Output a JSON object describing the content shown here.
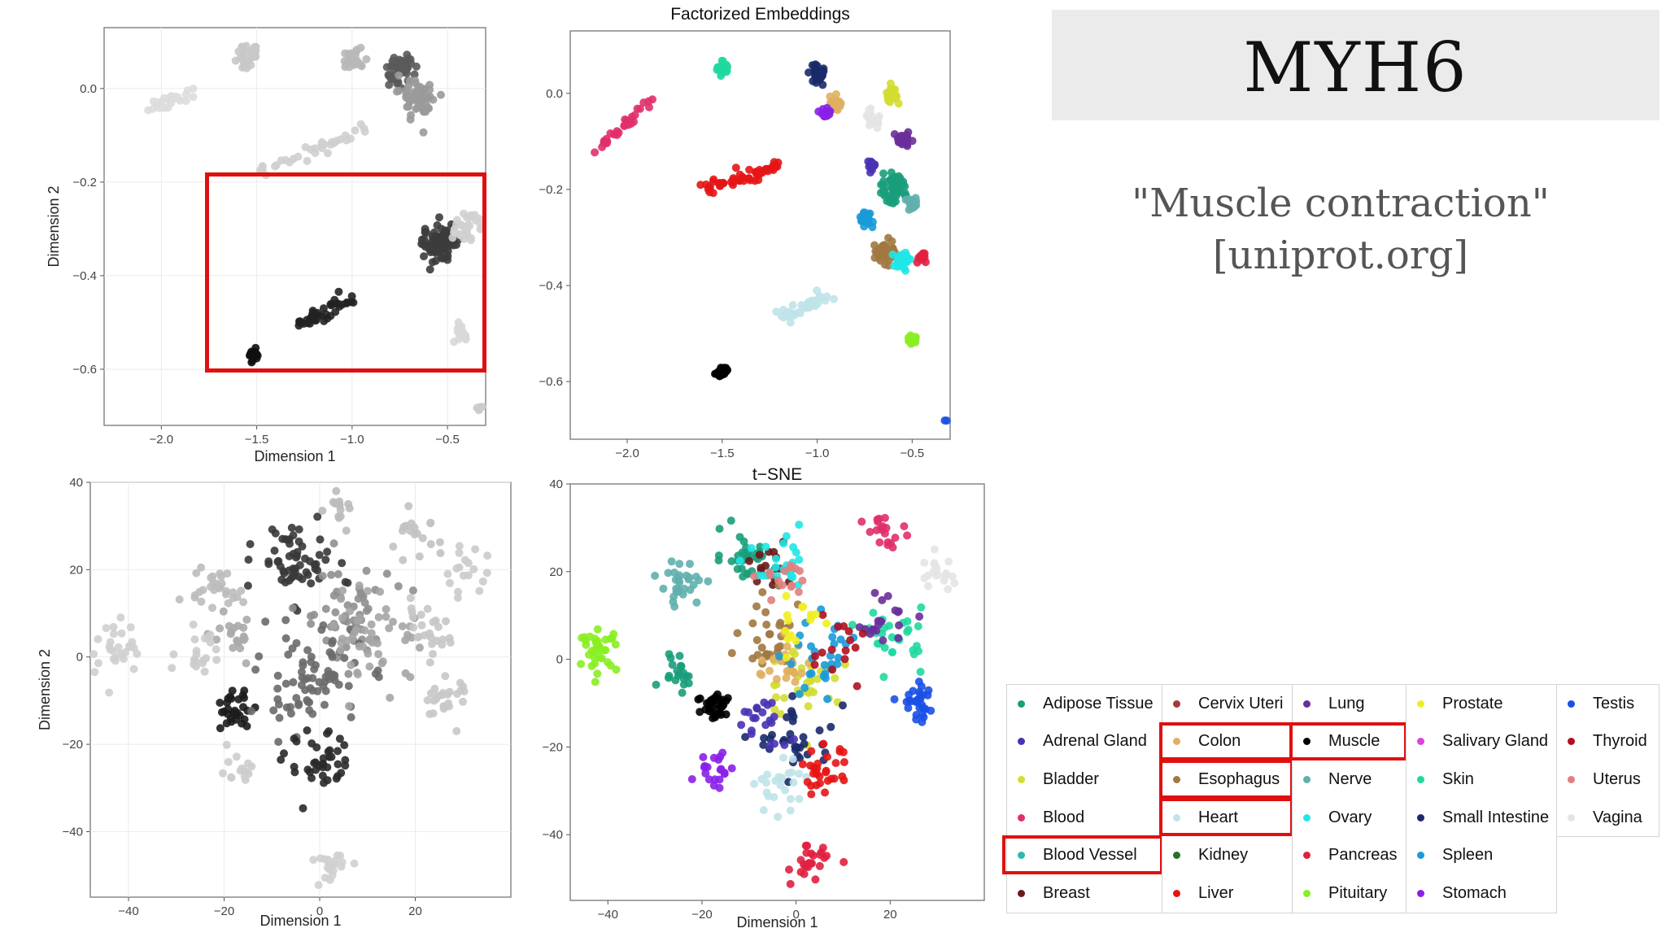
{
  "gene": {
    "title": "MYH6",
    "description_line1": "\"Muscle contraction\"",
    "description_line2": "[uniprot.org]"
  },
  "colors": {
    "highlight_box": "#e01010",
    "banner_bg": "#ebebeb"
  },
  "chart_data": [
    {
      "type": "scatter",
      "panel": "factorized-grayscale",
      "title": "",
      "xlabel": "Dimension 1",
      "ylabel": "Dimension 2",
      "xlim": [
        -2.3,
        -0.3
      ],
      "ylim": [
        -0.72,
        0.13
      ],
      "xticks": [
        -2.0,
        -1.5,
        -1.0,
        -0.5
      ],
      "xtick_labels": [
        "−2.0",
        "−1.5",
        "−1.0",
        "−0.5"
      ],
      "yticks": [
        0.0,
        -0.2,
        -0.4,
        -0.6
      ],
      "ytick_labels": [
        "0.0",
        "−0.2",
        "−0.4",
        "−0.6"
      ],
      "grid": true,
      "color_encoding": "grayscale by MYH6 expression (dark = high)",
      "clusters": [
        {
          "x": -2.1,
          "y": -0.05,
          "x2": -1.8,
          "y2": 0.0,
          "n": 26,
          "sd": 0.02,
          "shade": "#dddddd"
        },
        {
          "x": -1.55,
          "y": 0.07,
          "n": 30,
          "sd": 0.03,
          "shade": "#c8c8c8"
        },
        {
          "x": -1.0,
          "y": 0.06,
          "n": 28,
          "sd": 0.03,
          "shade": "#b8b8b8"
        },
        {
          "x": -0.75,
          "y": 0.04,
          "n": 45,
          "sd": 0.04,
          "shade": "#5a5a5a"
        },
        {
          "x": -0.65,
          "y": -0.02,
          "n": 60,
          "sd": 0.05,
          "shade": "#9a9a9a"
        },
        {
          "x": -1.5,
          "y": -0.18,
          "x2": -0.9,
          "y2": -0.08,
          "n": 35,
          "sd": 0.02,
          "shade": "#cfcfcf"
        },
        {
          "x": -0.55,
          "y": -0.33,
          "n": 90,
          "sd": 0.04,
          "shade": "#3c3c3c"
        },
        {
          "x": -0.4,
          "y": -0.3,
          "n": 30,
          "sd": 0.04,
          "shade": "#d0d0d0"
        },
        {
          "x": -1.3,
          "y": -0.51,
          "x2": -1.0,
          "y2": -0.45,
          "n": 40,
          "sd": 0.02,
          "shade": "#222222"
        },
        {
          "x": -1.52,
          "y": -0.57,
          "n": 22,
          "sd": 0.012,
          "shade": "#101010"
        },
        {
          "x": -0.43,
          "y": -0.52,
          "n": 16,
          "sd": 0.02,
          "shade": "#d8d8d8"
        },
        {
          "x": -0.32,
          "y": -0.68,
          "n": 12,
          "sd": 0.012,
          "shade": "#cccccc"
        }
      ]
    },
    {
      "type": "scatter",
      "panel": "factorized-colored",
      "title": "Factorized Embeddings",
      "xlabel": "",
      "ylabel": "",
      "xlim": [
        -2.3,
        -0.3
      ],
      "ylim": [
        -0.72,
        0.13
      ],
      "xticks": [
        -2.0,
        -1.5,
        -1.0,
        -0.5
      ],
      "xtick_labels": [
        "−2.0",
        "−1.5",
        "−1.0",
        "−0.5"
      ],
      "yticks": [
        0.0,
        -0.2,
        -0.4,
        -0.6
      ],
      "ytick_labels": [
        "0.0",
        "−0.2",
        "−0.4",
        "−0.6"
      ],
      "grid": false,
      "color_encoding": "tissue",
      "clusters": [
        {
          "tissue": "Blood",
          "x": -2.15,
          "y": -0.12,
          "x2": -1.85,
          "y2": 0.0,
          "n": 30,
          "sd": 0.012
        },
        {
          "tissue": "Skin",
          "x": -1.5,
          "y": 0.05,
          "n": 28,
          "sd": 0.015
        },
        {
          "tissue": "Liver",
          "x": -1.6,
          "y": -0.2,
          "x2": -1.2,
          "y2": -0.15,
          "n": 55,
          "sd": 0.018
        },
        {
          "tissue": "Small Intestine",
          "x": -1.0,
          "y": 0.04,
          "n": 35,
          "sd": 0.025
        },
        {
          "tissue": "Colon",
          "x": -0.9,
          "y": -0.02,
          "n": 25,
          "sd": 0.02
        },
        {
          "tissue": "Stomach",
          "x": -0.95,
          "y": -0.04,
          "n": 18,
          "sd": 0.015
        },
        {
          "tissue": "Adrenal Gland",
          "x": -0.72,
          "y": -0.15,
          "n": 20,
          "sd": 0.012
        },
        {
          "tissue": "Bladder",
          "x": -0.6,
          "y": 0.0,
          "n": 20,
          "sd": 0.02
        },
        {
          "tissue": "Vagina",
          "x": -0.7,
          "y": -0.05,
          "n": 20,
          "sd": 0.02
        },
        {
          "tissue": "Lung",
          "x": -0.55,
          "y": -0.1,
          "n": 30,
          "sd": 0.022
        },
        {
          "tissue": "Adipose Tissue",
          "x": -0.6,
          "y": -0.2,
          "n": 55,
          "sd": 0.035
        },
        {
          "tissue": "Nerve",
          "x": -0.5,
          "y": -0.23,
          "n": 20,
          "sd": 0.015
        },
        {
          "tissue": "Spleen",
          "x": -0.75,
          "y": -0.26,
          "n": 25,
          "sd": 0.02
        },
        {
          "tissue": "Esophagus",
          "x": -0.65,
          "y": -0.33,
          "n": 40,
          "sd": 0.03
        },
        {
          "tissue": "Ovary",
          "x": -0.55,
          "y": -0.35,
          "n": 30,
          "sd": 0.02
        },
        {
          "tissue": "Pancreas",
          "x": -0.45,
          "y": -0.34,
          "n": 12,
          "sd": 0.015
        },
        {
          "tissue": "Heart",
          "x": -1.2,
          "y": -0.47,
          "x2": -0.95,
          "y2": -0.42,
          "n": 40,
          "sd": 0.018
        },
        {
          "tissue": "Muscle",
          "x": -1.5,
          "y": -0.58,
          "n": 35,
          "sd": 0.012
        },
        {
          "tissue": "Pituitary",
          "x": -0.5,
          "y": -0.51,
          "n": 25,
          "sd": 0.012
        },
        {
          "tissue": "Testis",
          "x": -0.3,
          "y": -0.68,
          "n": 18,
          "sd": 0.01
        }
      ]
    },
    {
      "type": "scatter",
      "panel": "tsne-grayscale",
      "title": "",
      "xlabel": "Dimension 1",
      "ylabel": "Dimension 2",
      "xlim": [
        -48,
        40
      ],
      "ylim": [
        -55,
        40
      ],
      "xticks": [
        -40,
        -20,
        0,
        20
      ],
      "xtick_labels": [
        "−40",
        "−20",
        "0",
        "20"
      ],
      "yticks": [
        40,
        20,
        0,
        -20,
        -40
      ],
      "ytick_labels": [
        "40",
        "20",
        "0",
        "−20",
        "−40"
      ],
      "grid": true,
      "color_encoding": "grayscale by MYH6 expression (dark = high)",
      "clusters": [
        {
          "x": -42,
          "y": 2,
          "n": 30,
          "sd": 2.5,
          "shade": "#cfcfcf"
        },
        {
          "x": -22,
          "y": 16,
          "n": 30,
          "sd": 2.5,
          "shade": "#bdbdbd"
        },
        {
          "x": -18,
          "y": 5,
          "n": 20,
          "sd": 2.5,
          "shade": "#aaaaaa"
        },
        {
          "x": -25,
          "y": 0,
          "n": 20,
          "sd": 2.5,
          "shade": "#cccccc"
        },
        {
          "x": -18,
          "y": -12,
          "n": 30,
          "sd": 2.0,
          "shade": "#1c1c1c"
        },
        {
          "x": -17,
          "y": -26,
          "n": 15,
          "sd": 2.0,
          "shade": "#cdcdcd"
        },
        {
          "x": -5,
          "y": 22,
          "n": 60,
          "sd": 4.0,
          "shade": "#383838"
        },
        {
          "x": 5,
          "y": 10,
          "n": 50,
          "sd": 5.0,
          "shade": "#8f8f8f"
        },
        {
          "x": -2,
          "y": -5,
          "n": 80,
          "sd": 5.5,
          "shade": "#6a6a6a"
        },
        {
          "x": 12,
          "y": 5,
          "n": 50,
          "sd": 5.0,
          "shade": "#a5a5a5"
        },
        {
          "x": 0,
          "y": -25,
          "n": 40,
          "sd": 3.5,
          "shade": "#2a2a2a"
        },
        {
          "x": 4,
          "y": 34,
          "n": 15,
          "sd": 2.0,
          "shade": "#bbbbbb"
        },
        {
          "x": 20,
          "y": 27,
          "n": 18,
          "sd": 2.5,
          "shade": "#c2c2c2"
        },
        {
          "x": 22,
          "y": 5,
          "n": 25,
          "sd": 3.0,
          "shade": "#c6c6c6"
        },
        {
          "x": 30,
          "y": 20,
          "n": 18,
          "sd": 2.5,
          "shade": "#cbcbcb"
        },
        {
          "x": 26,
          "y": -10,
          "n": 25,
          "sd": 2.5,
          "shade": "#c8c8c8"
        },
        {
          "x": 3,
          "y": -47,
          "n": 20,
          "sd": 2.0,
          "shade": "#d0d0d0"
        }
      ]
    },
    {
      "type": "scatter",
      "panel": "tsne-colored",
      "title": "t−SNE",
      "xlabel": "Dimension 1",
      "ylabel": "",
      "xlim": [
        -48,
        40
      ],
      "ylim": [
        -55,
        40
      ],
      "xticks": [
        -40,
        -20,
        0,
        20
      ],
      "xtick_labels": [
        "−40",
        "−20",
        "0",
        "20"
      ],
      "yticks": [
        40,
        20,
        0,
        -20,
        -40
      ],
      "ytick_labels": [
        "40",
        "20",
        "0",
        "−20",
        "−40"
      ],
      "grid": false,
      "color_encoding": "tissue",
      "clusters": [
        {
          "tissue": "Pituitary",
          "x": -42,
          "y": 2,
          "n": 35,
          "sd": 2.0
        },
        {
          "tissue": "Nerve",
          "x": -24,
          "y": 17,
          "n": 30,
          "sd": 2.5
        },
        {
          "tissue": "Adipose Tissue",
          "x": -25,
          "y": -2,
          "n": 20,
          "sd": 2.0
        },
        {
          "tissue": "Muscle",
          "x": -17,
          "y": -11,
          "n": 35,
          "sd": 2.0
        },
        {
          "tissue": "Stomach",
          "x": -17,
          "y": -25,
          "n": 20,
          "sd": 2.0
        },
        {
          "tissue": "Adipose Tissue",
          "x": -11,
          "y": 24,
          "n": 30,
          "sd": 2.5
        },
        {
          "tissue": "Breast",
          "x": -6,
          "y": 22,
          "n": 15,
          "sd": 2.5
        },
        {
          "tissue": "Bladder",
          "x": 2,
          "y": -5,
          "n": 30,
          "sd": 4.0
        },
        {
          "tissue": "Esophagus",
          "x": -5,
          "y": 5,
          "n": 30,
          "sd": 4.0
        },
        {
          "tissue": "Small Intestine",
          "x": 0,
          "y": -18,
          "n": 35,
          "sd": 4.0
        },
        {
          "tissue": "Adrenal Gland",
          "x": -7,
          "y": -15,
          "n": 20,
          "sd": 3.0
        },
        {
          "tissue": "Colon",
          "x": -2,
          "y": -2,
          "n": 25,
          "sd": 3.5
        },
        {
          "tissue": "Spleen",
          "x": 6,
          "y": 0,
          "n": 30,
          "sd": 4.0
        },
        {
          "tissue": "Skin",
          "x": 21,
          "y": 5,
          "n": 30,
          "sd": 3.0
        },
        {
          "tissue": "Lung",
          "x": 18,
          "y": 10,
          "n": 20,
          "sd": 3.0
        },
        {
          "tissue": "Thyroid",
          "x": 10,
          "y": 2,
          "n": 15,
          "sd": 4.0
        },
        {
          "tissue": "Heart",
          "x": -4,
          "y": -28,
          "n": 25,
          "sd": 3.0
        },
        {
          "tissue": "Liver",
          "x": 6,
          "y": -26,
          "n": 30,
          "sd": 2.5
        },
        {
          "tissue": "Pancreas",
          "x": 3,
          "y": -47,
          "n": 25,
          "sd": 2.0
        },
        {
          "tissue": "Blood",
          "x": 19,
          "y": 30,
          "n": 20,
          "sd": 2.0
        },
        {
          "tissue": "Vagina",
          "x": 30,
          "y": 19,
          "n": 18,
          "sd": 2.0
        },
        {
          "tissue": "Testis",
          "x": 26,
          "y": -10,
          "n": 30,
          "sd": 2.0
        },
        {
          "tissue": "Ovary",
          "x": -3,
          "y": 20,
          "n": 25,
          "sd": 3.0
        },
        {
          "tissue": "Prostate",
          "x": 1,
          "y": 8,
          "n": 15,
          "sd": 3.5
        },
        {
          "tissue": "Uterus",
          "x": -2,
          "y": 18,
          "n": 15,
          "sd": 3.0
        }
      ]
    }
  ],
  "tissues": {
    "Adipose Tissue": "#1a9d7b",
    "Adrenal Gland": "#4a32b5",
    "Bladder": "#d3dd30",
    "Blood": "#e0306a",
    "Blood Vessel": "#2eb8b0",
    "Breast": "#6b1a1a",
    "Cervix Uteri": "#a33a3a",
    "Colon": "#e0b060",
    "Esophagus": "#a07840",
    "Heart": "#bfe3e8",
    "Kidney": "#2d6e2d",
    "Liver": "#e61515",
    "Lung": "#6a2f9a",
    "Muscle": "#000000",
    "Nerve": "#5fb0ae",
    "Ovary": "#20e6e6",
    "Pancreas": "#e02040",
    "Pituitary": "#88ee22",
    "Prostate": "#f0ee20",
    "Salivary Gland": "#e040e0",
    "Skin": "#20d8a0",
    "Small Intestine": "#1a2a6a",
    "Spleen": "#1a9ad8",
    "Stomach": "#8a20e8",
    "Testis": "#1a50e6",
    "Thyroid": "#b01020",
    "Uterus": "#e08080",
    "Vagina": "#e4e4e4"
  },
  "legend": {
    "columns": [
      [
        "Adipose Tissue",
        "Adrenal Gland",
        "Bladder",
        "Blood",
        "Blood Vessel",
        "Breast"
      ],
      [
        "Cervix Uteri",
        "Colon",
        "Esophagus",
        "Heart",
        "Kidney",
        "Liver"
      ],
      [
        "Lung",
        "Muscle",
        "Nerve",
        "Ovary",
        "Pancreas",
        "Pituitary"
      ],
      [
        "Prostate",
        "Salivary Gland",
        "Skin",
        "Small Intestine",
        "Spleen",
        "Stomach"
      ],
      [
        "Testis",
        "Thyroid",
        "Uterus",
        "Vagina"
      ]
    ],
    "highlighted": [
      "Blood Vessel",
      "Colon",
      "Esophagus",
      "Heart",
      "Muscle"
    ]
  }
}
